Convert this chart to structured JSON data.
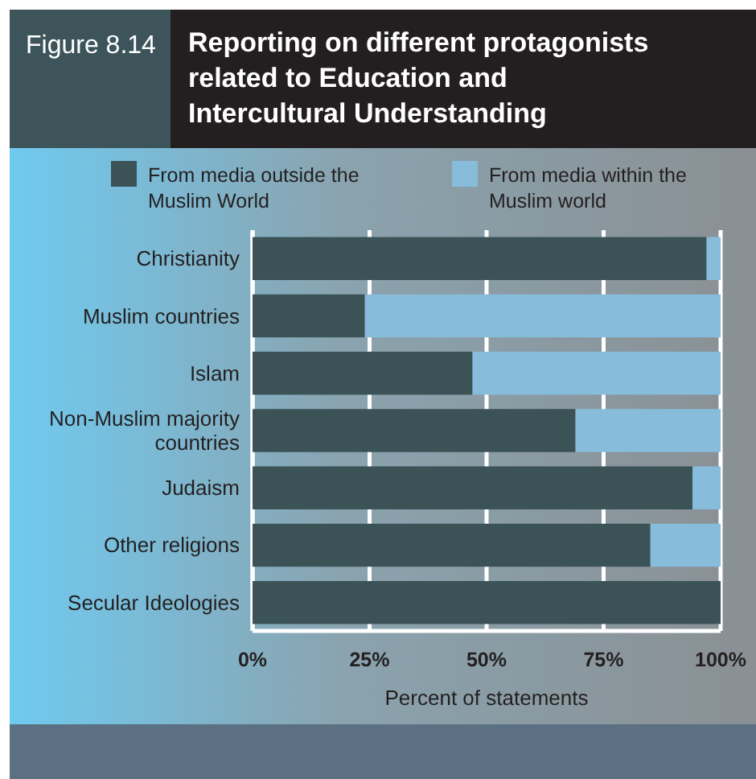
{
  "chart_data": {
    "type": "bar",
    "orientation": "horizontal",
    "stacked": true,
    "title": "Reporting on different protagonists related to Education and Intercultural Understanding",
    "annotations": [
      "Figure 8.14"
    ],
    "xlabel": "Percent of statements",
    "categories": [
      "Christianity",
      "Muslim countries",
      "Islam",
      "Non-Muslim majority countries",
      "Judaism",
      "Other religions",
      "Secular Ideologies"
    ],
    "series": [
      {
        "name": "From media outside the Muslim World",
        "color": "#3b5257",
        "values": [
          97,
          24,
          47,
          69,
          94,
          85,
          100
        ]
      },
      {
        "name": "From media within the Muslim world",
        "color": "#88bcdb",
        "values": [
          3,
          76,
          53,
          31,
          6,
          15,
          0
        ]
      }
    ],
    "xlim": [
      0,
      100
    ],
    "xticks": [
      {
        "value": 0,
        "label": "0%"
      },
      {
        "value": 25,
        "label": "25%"
      },
      {
        "value": 50,
        "label": "50%"
      },
      {
        "value": 75,
        "label": "75%"
      },
      {
        "value": 100,
        "label": "100%"
      }
    ],
    "grid": "x",
    "legend": "top"
  }
}
